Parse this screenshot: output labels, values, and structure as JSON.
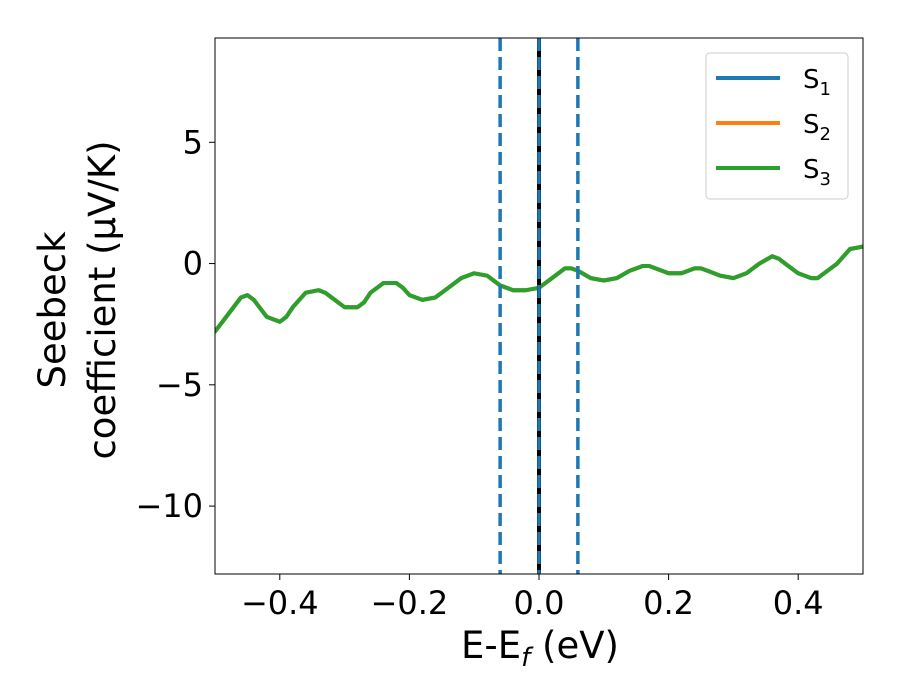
{
  "chart_data": {
    "type": "line",
    "xlabel": "E-E_f (eV)",
    "xlabel_parts": {
      "main": "E-E",
      "sub": "f",
      "unit": " (eV)"
    },
    "ylabel_lines": [
      "Seebeck",
      "coefficient  (μV/K)"
    ],
    "xlim": [
      -0.5,
      0.5
    ],
    "ylim": [
      -12.8,
      9.3
    ],
    "xticks": [
      -0.4,
      -0.2,
      0.0,
      0.2,
      0.4
    ],
    "xtick_labels": [
      "−0.4",
      "−0.2",
      "0.0",
      "0.2",
      "0.4"
    ],
    "yticks": [
      -10,
      -5,
      0,
      5
    ],
    "ytick_labels": [
      "−10",
      "−5",
      "0",
      "5"
    ],
    "grid": false,
    "legend_position": "top-right",
    "series": [
      {
        "name": "S1",
        "label_main": "S",
        "label_sub": "1",
        "color": "#1f77b4",
        "x": [
          -0.5,
          -0.48,
          -0.46,
          -0.45,
          -0.44,
          -0.42,
          -0.4,
          -0.39,
          -0.38,
          -0.36,
          -0.34,
          -0.33,
          -0.32,
          -0.3,
          -0.28,
          -0.27,
          -0.26,
          -0.24,
          -0.22,
          -0.21,
          -0.2,
          -0.18,
          -0.16,
          -0.14,
          -0.12,
          -0.1,
          -0.08,
          -0.07,
          -0.06,
          -0.04,
          -0.02,
          0.0,
          0.02,
          0.04,
          0.05,
          0.06,
          0.08,
          0.1,
          0.12,
          0.14,
          0.16,
          0.17,
          0.18,
          0.2,
          0.22,
          0.24,
          0.25,
          0.26,
          0.28,
          0.3,
          0.32,
          0.34,
          0.36,
          0.37,
          0.38,
          0.4,
          0.42,
          0.43,
          0.44,
          0.46,
          0.48,
          0.5
        ],
        "y": [
          -2.8,
          -2.1,
          -1.4,
          -1.3,
          -1.5,
          -2.2,
          -2.4,
          -2.2,
          -1.8,
          -1.2,
          -1.1,
          -1.2,
          -1.4,
          -1.8,
          -1.8,
          -1.6,
          -1.2,
          -0.8,
          -0.8,
          -1.0,
          -1.3,
          -1.5,
          -1.4,
          -1.0,
          -0.6,
          -0.4,
          -0.5,
          -0.7,
          -0.9,
          -1.1,
          -1.1,
          -1.0,
          -0.6,
          -0.2,
          -0.2,
          -0.3,
          -0.6,
          -0.7,
          -0.6,
          -0.3,
          -0.1,
          -0.1,
          -0.2,
          -0.4,
          -0.4,
          -0.2,
          -0.2,
          -0.3,
          -0.5,
          -0.6,
          -0.4,
          0.0,
          0.3,
          0.2,
          0.0,
          -0.4,
          -0.6,
          -0.6,
          -0.4,
          0.0,
          0.6,
          0.7
        ]
      },
      {
        "name": "S2",
        "label_main": "S",
        "label_sub": "2",
        "color": "#ff7f0e",
        "x": [
          -0.5,
          -0.48,
          -0.46,
          -0.45,
          -0.44,
          -0.42,
          -0.4,
          -0.39,
          -0.38,
          -0.36,
          -0.34,
          -0.33,
          -0.32,
          -0.3,
          -0.28,
          -0.27,
          -0.26,
          -0.24,
          -0.22,
          -0.21,
          -0.2,
          -0.18,
          -0.16,
          -0.14,
          -0.12,
          -0.1,
          -0.08,
          -0.07,
          -0.06,
          -0.04,
          -0.02,
          0.0,
          0.02,
          0.04,
          0.05,
          0.06,
          0.08,
          0.1,
          0.12,
          0.14,
          0.16,
          0.17,
          0.18,
          0.2,
          0.22,
          0.24,
          0.25,
          0.26,
          0.28,
          0.3,
          0.32,
          0.34,
          0.36,
          0.37,
          0.38,
          0.4,
          0.42,
          0.43,
          0.44,
          0.46,
          0.48,
          0.5
        ],
        "y": [
          -2.8,
          -2.1,
          -1.4,
          -1.3,
          -1.5,
          -2.2,
          -2.4,
          -2.2,
          -1.8,
          -1.2,
          -1.1,
          -1.2,
          -1.4,
          -1.8,
          -1.8,
          -1.6,
          -1.2,
          -0.8,
          -0.8,
          -1.0,
          -1.3,
          -1.5,
          -1.4,
          -1.0,
          -0.6,
          -0.4,
          -0.5,
          -0.7,
          -0.9,
          -1.1,
          -1.1,
          -1.0,
          -0.6,
          -0.2,
          -0.2,
          -0.3,
          -0.6,
          -0.7,
          -0.6,
          -0.3,
          -0.1,
          -0.1,
          -0.2,
          -0.4,
          -0.4,
          -0.2,
          -0.2,
          -0.3,
          -0.5,
          -0.6,
          -0.4,
          0.0,
          0.3,
          0.2,
          0.0,
          -0.4,
          -0.6,
          -0.6,
          -0.4,
          0.0,
          0.6,
          0.7
        ]
      },
      {
        "name": "S3",
        "label_main": "S",
        "label_sub": "3",
        "color": "#2ca02c",
        "x": [
          -0.5,
          -0.48,
          -0.46,
          -0.45,
          -0.44,
          -0.42,
          -0.4,
          -0.39,
          -0.38,
          -0.36,
          -0.34,
          -0.33,
          -0.32,
          -0.3,
          -0.28,
          -0.27,
          -0.26,
          -0.24,
          -0.22,
          -0.21,
          -0.2,
          -0.18,
          -0.16,
          -0.14,
          -0.12,
          -0.1,
          -0.08,
          -0.07,
          -0.06,
          -0.04,
          -0.02,
          0.0,
          0.02,
          0.04,
          0.05,
          0.06,
          0.08,
          0.1,
          0.12,
          0.14,
          0.16,
          0.17,
          0.18,
          0.2,
          0.22,
          0.24,
          0.25,
          0.26,
          0.28,
          0.3,
          0.32,
          0.34,
          0.36,
          0.37,
          0.38,
          0.4,
          0.42,
          0.43,
          0.44,
          0.46,
          0.48,
          0.5
        ],
        "y": [
          -2.8,
          -2.1,
          -1.4,
          -1.3,
          -1.5,
          -2.2,
          -2.4,
          -2.2,
          -1.8,
          -1.2,
          -1.1,
          -1.2,
          -1.4,
          -1.8,
          -1.8,
          -1.6,
          -1.2,
          -0.8,
          -0.8,
          -1.0,
          -1.3,
          -1.5,
          -1.4,
          -1.0,
          -0.6,
          -0.4,
          -0.5,
          -0.7,
          -0.9,
          -1.1,
          -1.1,
          -1.0,
          -0.6,
          -0.2,
          -0.2,
          -0.3,
          -0.6,
          -0.7,
          -0.6,
          -0.3,
          -0.1,
          -0.1,
          -0.2,
          -0.4,
          -0.4,
          -0.2,
          -0.2,
          -0.3,
          -0.5,
          -0.6,
          -0.4,
          0.0,
          0.3,
          0.2,
          0.0,
          -0.4,
          -0.6,
          -0.6,
          -0.4,
          0.0,
          0.6,
          0.7
        ]
      }
    ],
    "vlines": [
      {
        "x": -0.06,
        "style": "dashed",
        "color": "#1f77b4"
      },
      {
        "x": 0.06,
        "style": "dashed",
        "color": "#1f77b4"
      },
      {
        "x": 0.0,
        "style": "solid",
        "color": "#000000"
      },
      {
        "x": 0.0,
        "style": "dashed",
        "color": "#1f77b4"
      }
    ]
  }
}
